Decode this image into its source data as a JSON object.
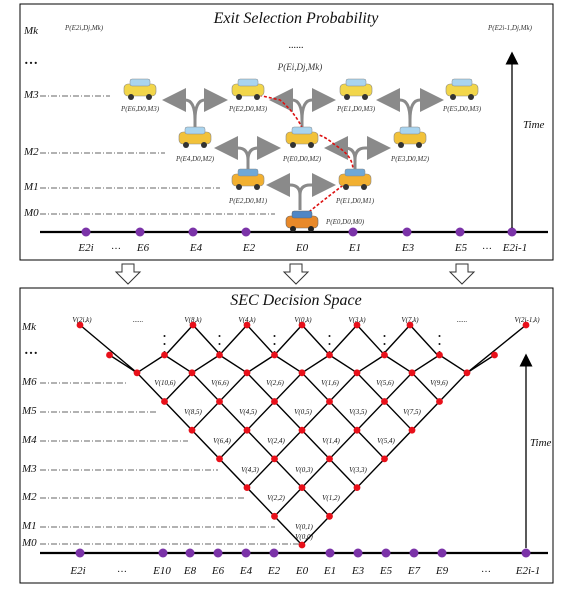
{
  "top_panel": {
    "title": "Exit Selection Probability",
    "levels": [
      "Mk",
      "M3",
      "M2",
      "M1",
      "M0"
    ],
    "exits": [
      "E2i",
      "E6",
      "E4",
      "E2",
      "E0",
      "E1",
      "E3",
      "E5",
      "E2i-1"
    ],
    "ellipsis": "......",
    "vertical_dots": "…",
    "exit_ellipsis": "…",
    "center_prob": "P(Ei,Dj,Mk)",
    "corner_prob_left": "P(E2i,Dj,Mk)",
    "corner_prob_right": "P(E2i-1,Dj,Mk)",
    "car_probs": [
      "P(E6,D0,M3)",
      "P(E2,D0,M3)",
      "P(E1,D0,M3)",
      "P(E5,D0,M3)",
      "P(E4,D0,M2)",
      "P(E0,D0,M2)",
      "P(E3,D0,M2)",
      "P(E2,D0,M1)",
      "P(E1,D0,M1)",
      "P(E0,D0,M0)"
    ],
    "time_label": "Time"
  },
  "bottom_panel": {
    "title": "SEC Decision Space",
    "levels": [
      "Mk",
      "M6",
      "M5",
      "M4",
      "M3",
      "M2",
      "M1",
      "M0"
    ],
    "exits": [
      "E2i",
      "E10",
      "E8",
      "E6",
      "E4",
      "E2",
      "E0",
      "E1",
      "E3",
      "E5",
      "E7",
      "E9",
      "E2i-1"
    ],
    "vertical_dots": "…",
    "exit_ellipsis": "…",
    "top_ellipsis": "......",
    "top_values": [
      "V(2i,k)",
      "V(8,k)",
      "V(4,k)",
      "V(0,k)",
      "V(3,k)",
      "V(7,k)",
      "V(2i-1,k)"
    ],
    "m6_values": [
      "V(10,6)",
      "V(6,6)",
      "V(2,6)",
      "V(1,6)",
      "V(5,6)",
      "V(9,6)"
    ],
    "m5_values": [
      "V(8,5)",
      "V(4,5)",
      "V(0,5)",
      "V(3,5)",
      "V(7,5)"
    ],
    "m4_values": [
      "V(6,4)",
      "V(2,4)",
      "V(1,4)",
      "V(5,4)"
    ],
    "m3_values": [
      "V(4,3)",
      "V(0,3)",
      "V(3,3)"
    ],
    "m2_values": [
      "V(2,2)",
      "V(1,2)"
    ],
    "m1_values": [
      "V(0,1)"
    ],
    "m0_values": [
      "V(0,0)"
    ],
    "time_label": "Time"
  },
  "arrow_icon": "hollow-down-arrow",
  "colors": {
    "node_red": "#e8101a",
    "exit_purple": "#7b33a8",
    "path_red": "#dd1111",
    "arrow_gray": "#8a8a8a",
    "car_yellow": "#f2d64a",
    "car_orange": "#e8892a"
  }
}
